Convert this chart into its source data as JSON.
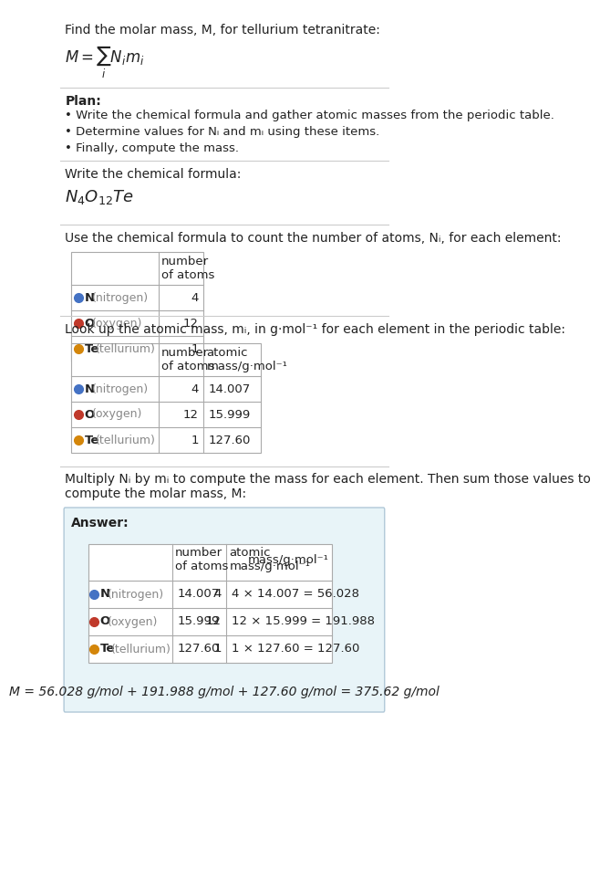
{
  "title_line1": "Find the molar mass, M, for tellurium tetranitrate:",
  "bg_color": "#ffffff",
  "section_bg_answer": "#e8f4f8",
  "table_border_color": "#aaaaaa",
  "text_color": "#222222",
  "gray_text": "#888888",
  "plan_header": "Plan:",
  "plan_bullets": [
    "• Write the chemical formula and gather atomic masses from the periodic table.",
    "• Determine values for Nᵢ and mᵢ using these items.",
    "• Finally, compute the mass."
  ],
  "formula_header": "Write the chemical formula:",
  "table1_header": "Use the chemical formula to count the number of atoms, Nᵢ, for each element:",
  "table2_header": "Look up the atomic mass, mᵢ, in g·mol⁻¹ for each element in the periodic table:",
  "table3_header": "Multiply Nᵢ by mᵢ to compute the mass for each element. Then sum those values to\ncompute the molar mass, M:",
  "element_symbols": [
    "N",
    "O",
    "Te"
  ],
  "element_labels": [
    "(nitrogen)",
    "(oxygen)",
    "(tellurium)"
  ],
  "element_colors": [
    "#4472c4",
    "#c0392b",
    "#d4860a"
  ],
  "counts": [
    4,
    12,
    1
  ],
  "atomic_masses": [
    "14.007",
    "15.999",
    "127.60"
  ],
  "mass_calcs": [
    "4 × 14.007 = 56.028",
    "12 × 15.999 = 191.988",
    "1 × 127.60 = 127.60"
  ],
  "final_eq": "M = 56.028 g/mol + 191.988 g/mol + 127.60 g/mol = 375.62 g/mol",
  "answer_label": "Answer:",
  "num_rows": 3
}
